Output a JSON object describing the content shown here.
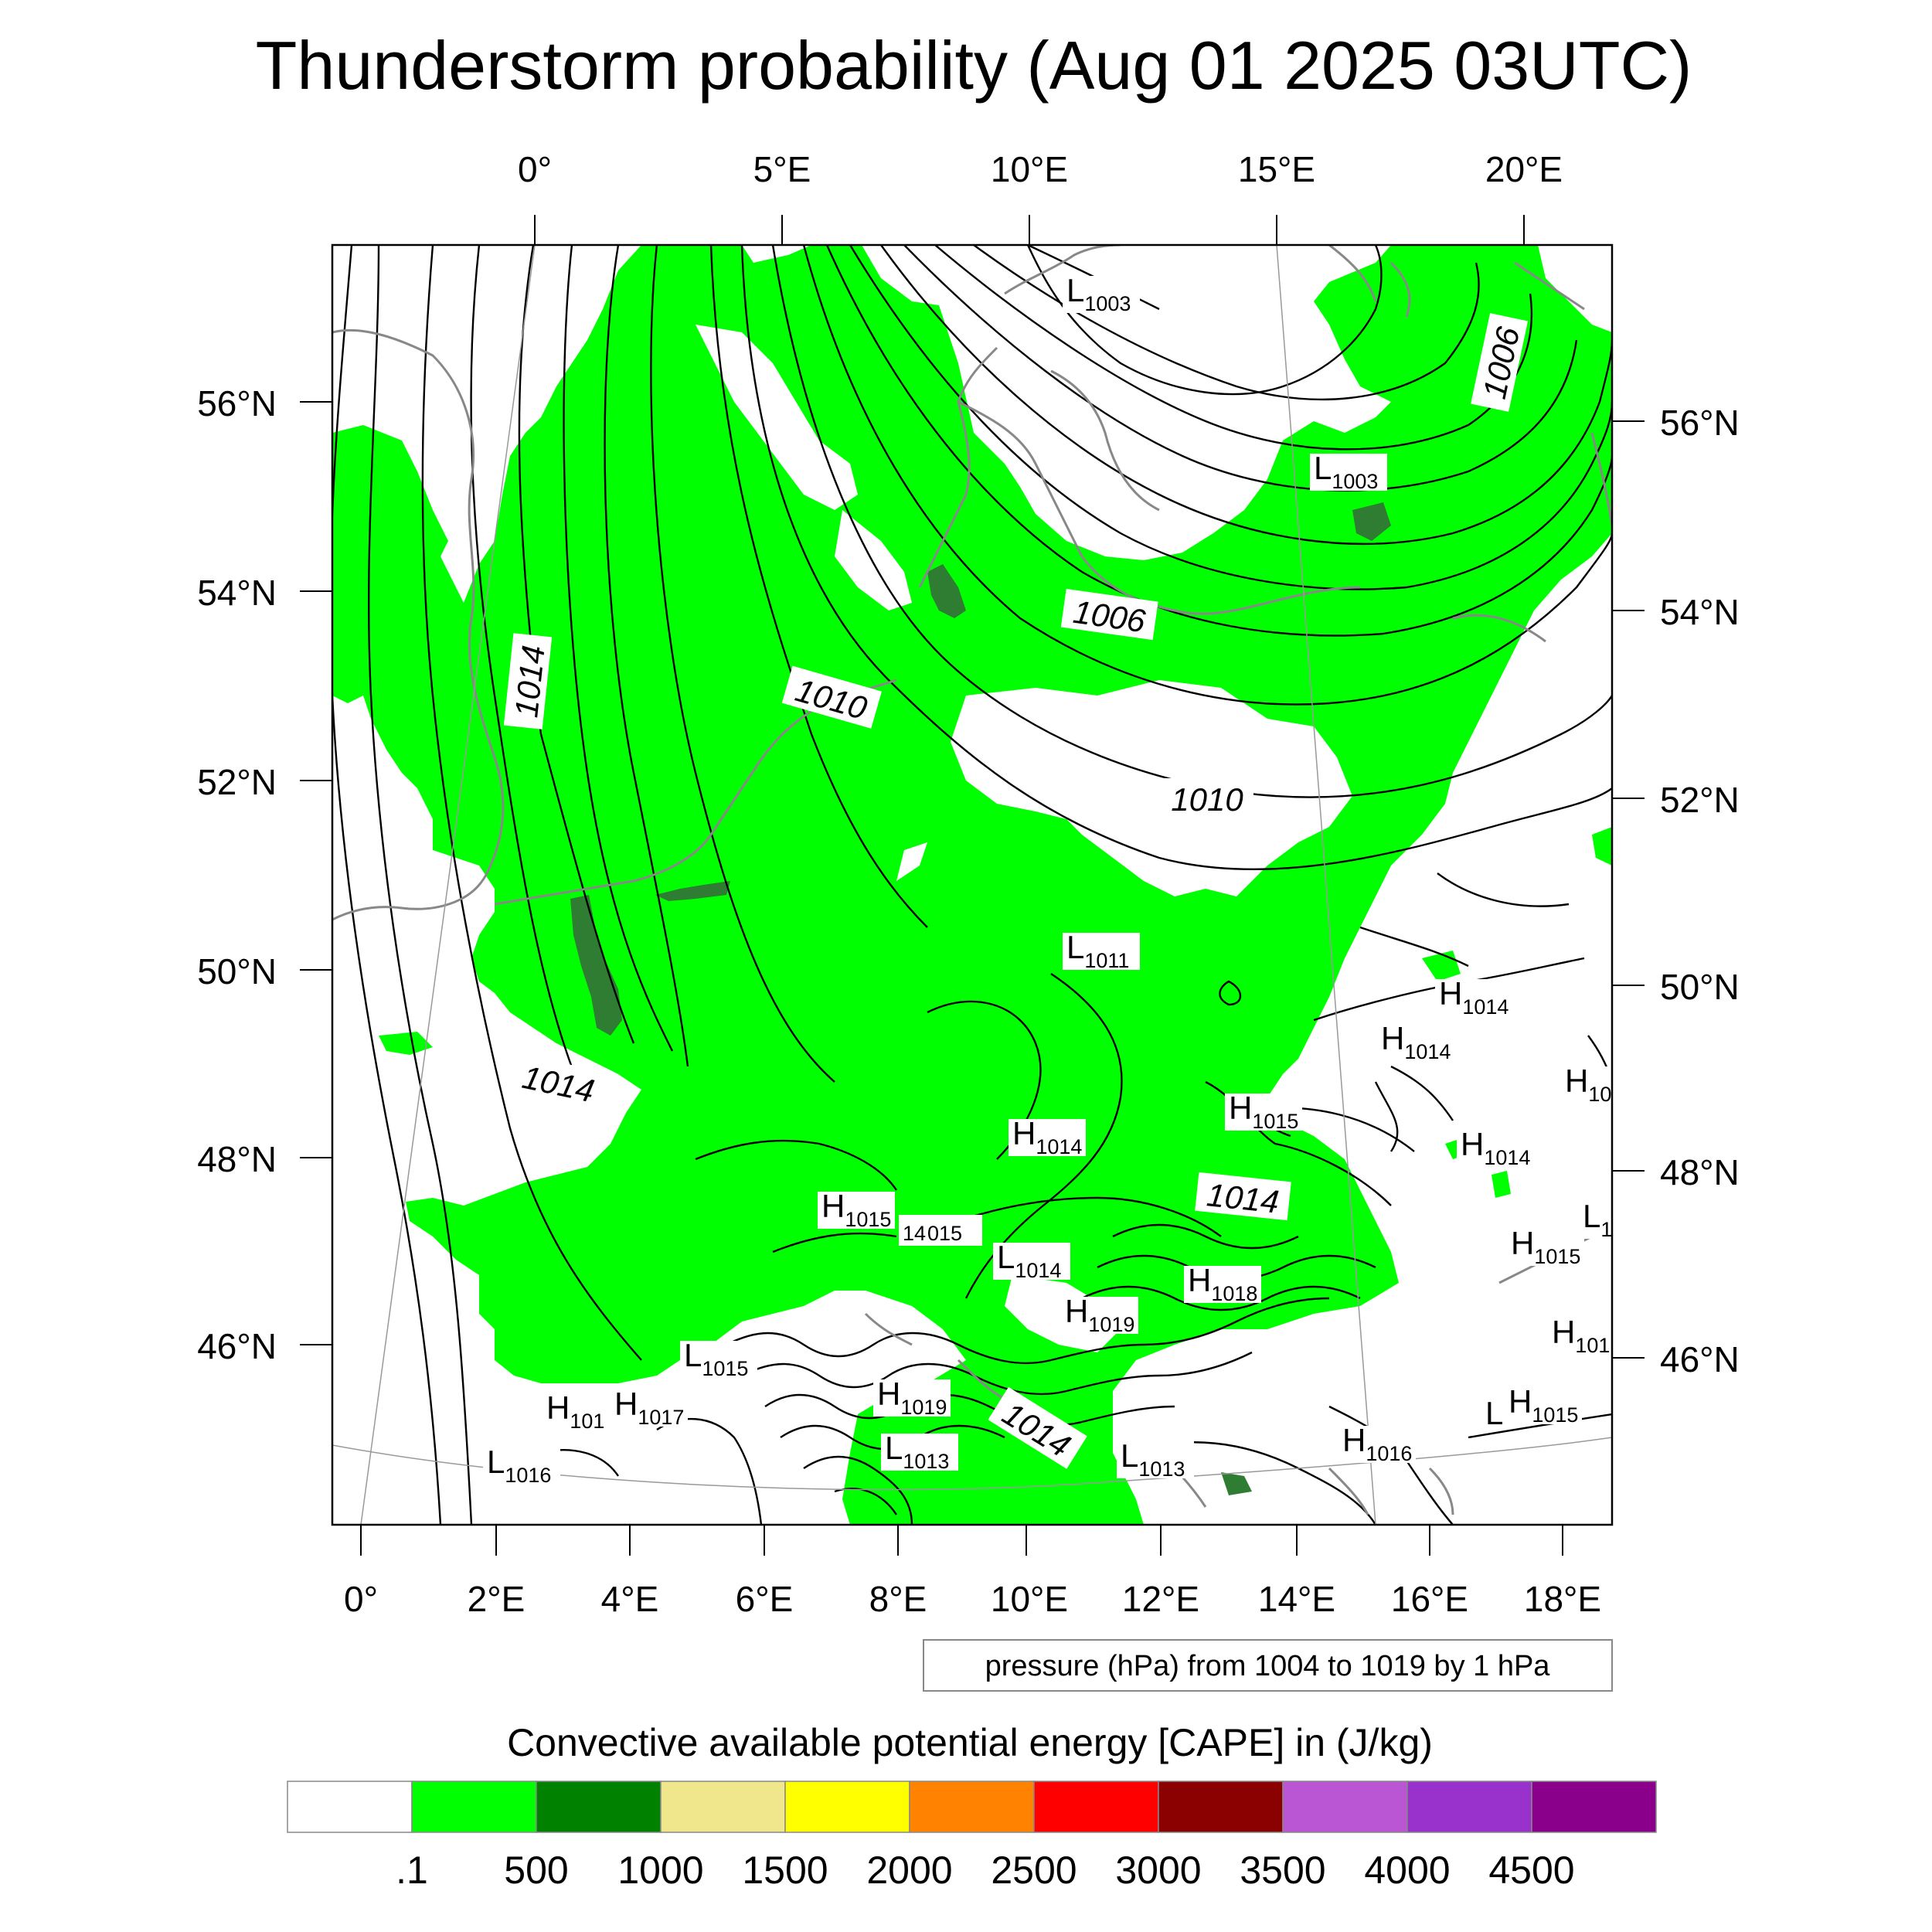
{
  "title": "Thunderstorm probability (Aug 01 2025 03UTC)",
  "top_lon_labels": [
    "0°",
    "5°E",
    "10°E",
    "15°E",
    "20°E"
  ],
  "bottom_lon_labels": [
    "0°",
    "2°E",
    "4°E",
    "6°E",
    "8°E",
    "10°E",
    "12°E",
    "14°E",
    "16°E",
    "18°E"
  ],
  "left_lat_labels": [
    "56°N",
    "54°N",
    "52°N",
    "50°N",
    "48°N",
    "46°N"
  ],
  "right_lat_labels": [
    "56°N",
    "54°N",
    "52°N",
    "50°N",
    "48°N",
    "46°N"
  ],
  "contour_info": "pressure (hPa) from 1004 to 1019 by 1 hPa",
  "colorbar": {
    "caption": "Convective available potential energy [CAPE] in (J/kg)",
    "labels": [
      ".1",
      "500",
      "1000",
      "1500",
      "2000",
      "2500",
      "3000",
      "3500",
      "4000",
      "4500"
    ],
    "colors": [
      "#ffffff",
      "#00ff00",
      "#008200",
      "#f0e68c",
      "#ffff00",
      "#ff8200",
      "#ff0000",
      "#8b0000",
      "#ba55d3",
      "#9932cc",
      "#8b008b"
    ]
  },
  "map_colors": {
    "cape_low": "#00ff00",
    "cape_mid": "#2e7d32",
    "coast": "#888888",
    "contour": "#000000"
  },
  "contour_labels": [
    "1006",
    "1006",
    "1010",
    "1010",
    "1014",
    "1014",
    "1014",
    "1014"
  ],
  "pressure_centers": [
    {
      "type": "L",
      "value": "1003"
    },
    {
      "type": "L",
      "value": "1003"
    },
    {
      "type": "L",
      "value": "1011"
    },
    {
      "type": "H",
      "value": "1014"
    },
    {
      "type": "H",
      "value": "1014"
    },
    {
      "type": "H",
      "value": "1015"
    },
    {
      "type": "H",
      "value": "1014"
    },
    {
      "type": "H",
      "value": "1014"
    },
    {
      "type": "H",
      "value": "1015"
    },
    {
      "type": "L",
      "value": "1014"
    },
    {
      "type": "H",
      "value": "1018"
    },
    {
      "type": "H",
      "value": "1019"
    },
    {
      "type": "H",
      "value": "1015"
    },
    {
      "type": "L",
      "value": "1015"
    },
    {
      "type": "H",
      "value": "101"
    },
    {
      "type": "H",
      "value": "1017"
    },
    {
      "type": "H",
      "value": "1019"
    },
    {
      "type": "L",
      "value": "1013"
    },
    {
      "type": "L",
      "value": "1016"
    },
    {
      "type": "L",
      "value": "1013"
    },
    {
      "type": "H",
      "value": "1016"
    },
    {
      "type": "H",
      "value": "1015"
    },
    {
      "type": "H",
      "value": "10"
    },
    {
      "type": "H",
      "value": "101"
    },
    {
      "type": "L",
      "value": "1"
    }
  ],
  "extra_text": [
    "14",
    "015",
    "L"
  ]
}
